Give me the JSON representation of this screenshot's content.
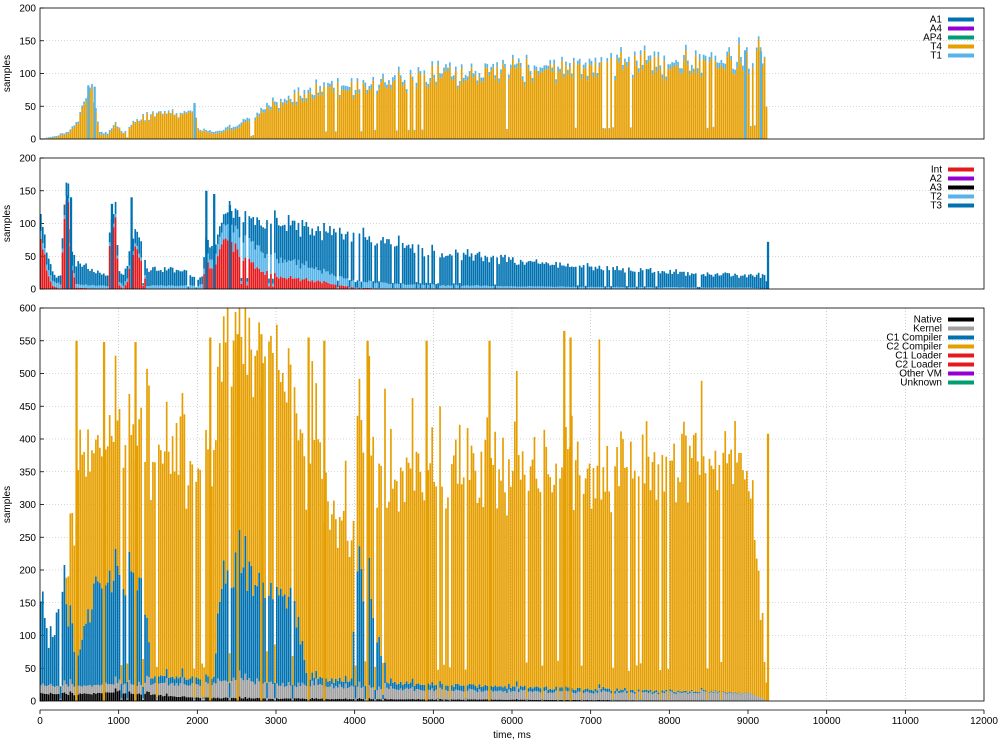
{
  "chart_data": [
    {
      "type": "bar",
      "stacked": true,
      "ylabel": "samples",
      "ylim": [
        0,
        200
      ],
      "yticks": [
        0,
        50,
        100,
        150,
        200
      ],
      "grid": true,
      "legend_position": "top-right",
      "series": [
        {
          "name": "A1",
          "color": "#0072b2"
        },
        {
          "name": "A4",
          "color": "#9400d3"
        },
        {
          "name": "AP4",
          "color": "#009e73"
        },
        {
          "name": "T4",
          "color": "#e69f00"
        },
        {
          "name": "T1",
          "color": "#56b4e9"
        }
      ],
      "profiles": {
        "T4": [
          [
            0,
            0
          ],
          [
            200,
            3
          ],
          [
            350,
            10
          ],
          [
            450,
            22
          ],
          [
            550,
            55
          ],
          [
            650,
            72
          ],
          [
            750,
            8
          ],
          [
            850,
            6
          ],
          [
            950,
            22
          ],
          [
            1050,
            8
          ],
          [
            1200,
            25
          ],
          [
            1400,
            35
          ],
          [
            1600,
            38
          ],
          [
            1800,
            35
          ],
          [
            1950,
            45
          ],
          [
            2000,
            15
          ],
          [
            2200,
            8
          ],
          [
            2500,
            18
          ],
          [
            2800,
            38
          ],
          [
            3000,
            50
          ],
          [
            3500,
            68
          ],
          [
            4000,
            80
          ],
          [
            4500,
            86
          ],
          [
            5000,
            92
          ],
          [
            5500,
            98
          ],
          [
            6000,
            102
          ],
          [
            6500,
            106
          ],
          [
            7000,
            108
          ],
          [
            7500,
            110
          ],
          [
            8000,
            112
          ],
          [
            8500,
            114
          ],
          [
            9000,
            118
          ],
          [
            9200,
            122
          ],
          [
            9250,
            0
          ]
        ],
        "T1": [
          [
            0,
            0
          ],
          [
            200,
            2
          ],
          [
            450,
            3
          ],
          [
            650,
            5
          ],
          [
            1000,
            2
          ],
          [
            2000,
            2
          ],
          [
            2400,
            4
          ],
          [
            3000,
            5
          ],
          [
            4000,
            6
          ],
          [
            6000,
            6
          ],
          [
            8000,
            7
          ],
          [
            9000,
            8
          ],
          [
            9250,
            0
          ]
        ]
      },
      "spikes": [
        [
          600,
          82
        ],
        [
          680,
          80
        ],
        [
          1950,
          55
        ],
        [
          8950,
          135
        ],
        [
          9150,
          134
        ]
      ]
    },
    {
      "type": "bar",
      "stacked": true,
      "ylabel": "samples",
      "ylim": [
        0,
        200
      ],
      "yticks": [
        0,
        50,
        100,
        150,
        200
      ],
      "grid": true,
      "legend_position": "top-right",
      "series": [
        {
          "name": "Int",
          "color": "#e41a1c"
        },
        {
          "name": "A2",
          "color": "#9400d3"
        },
        {
          "name": "A3",
          "color": "#000000"
        },
        {
          "name": "T2",
          "color": "#56b4e9"
        },
        {
          "name": "T3",
          "color": "#0072b2"
        }
      ],
      "profiles": {
        "Int": [
          [
            0,
            70
          ],
          [
            60,
            40
          ],
          [
            100,
            20
          ],
          [
            150,
            5
          ],
          [
            250,
            0
          ],
          [
            300,
            120
          ],
          [
            340,
            130
          ],
          [
            400,
            30
          ],
          [
            450,
            2
          ],
          [
            850,
            0
          ],
          [
            880,
            85
          ],
          [
            950,
            90
          ],
          [
            1000,
            5
          ],
          [
            1050,
            0
          ],
          [
            1100,
            10
          ],
          [
            1200,
            70
          ],
          [
            1300,
            30
          ],
          [
            1350,
            0
          ],
          [
            2050,
            0
          ],
          [
            2100,
            40
          ],
          [
            2200,
            30
          ],
          [
            2300,
            70
          ],
          [
            2400,
            80
          ],
          [
            2500,
            60
          ],
          [
            2600,
            45
          ],
          [
            2800,
            30
          ],
          [
            3000,
            20
          ],
          [
            3500,
            12
          ],
          [
            4000,
            2
          ],
          [
            4500,
            0
          ],
          [
            9250,
            0
          ]
        ],
        "T2": [
          [
            0,
            10
          ],
          [
            500,
            5
          ],
          [
            1000,
            5
          ],
          [
            2000,
            5
          ],
          [
            2300,
            20
          ],
          [
            2600,
            35
          ],
          [
            3000,
            28
          ],
          [
            3500,
            18
          ],
          [
            4000,
            10
          ],
          [
            5000,
            6
          ],
          [
            6000,
            4
          ],
          [
            7000,
            3
          ],
          [
            9000,
            2
          ],
          [
            9250,
            0
          ]
        ],
        "T3": [
          [
            0,
            25
          ],
          [
            200,
            10
          ],
          [
            500,
            30
          ],
          [
            700,
            20
          ],
          [
            1000,
            15
          ],
          [
            1400,
            25
          ],
          [
            1800,
            25
          ],
          [
            2000,
            10
          ],
          [
            2100,
            20
          ],
          [
            2300,
            15
          ],
          [
            2600,
            35
          ],
          [
            3000,
            55
          ],
          [
            3500,
            60
          ],
          [
            4000,
            68
          ],
          [
            4500,
            62
          ],
          [
            5000,
            52
          ],
          [
            5500,
            46
          ],
          [
            6000,
            40
          ],
          [
            6500,
            34
          ],
          [
            7000,
            30
          ],
          [
            7500,
            26
          ],
          [
            8000,
            23
          ],
          [
            8500,
            20
          ],
          [
            9000,
            18
          ],
          [
            9200,
            20
          ],
          [
            9250,
            0
          ]
        ]
      },
      "spikes": [
        [
          330,
          143
        ],
        [
          380,
          140
        ],
        [
          900,
          130
        ],
        [
          1150,
          140
        ],
        [
          2100,
          150
        ],
        [
          2200,
          145
        ],
        [
          2400,
          128
        ],
        [
          9240,
          72
        ]
      ]
    },
    {
      "type": "bar",
      "stacked": true,
      "xlabel": "time, ms",
      "ylabel": "samples",
      "ylim": [
        0,
        600
      ],
      "yticks": [
        0,
        50,
        100,
        150,
        200,
        250,
        300,
        350,
        400,
        450,
        500,
        550,
        600
      ],
      "xlim": [
        0,
        12000
      ],
      "xticks": [
        0,
        1000,
        2000,
        3000,
        4000,
        5000,
        6000,
        7000,
        8000,
        9000,
        10000,
        11000,
        12000
      ],
      "grid": true,
      "legend_position": "top-right",
      "series": [
        {
          "name": "Native",
          "color": "#000000"
        },
        {
          "name": "Kernel",
          "color": "#a0a0a0"
        },
        {
          "name": "C1 Compiler",
          "color": "#0072b2"
        },
        {
          "name": "C2 Compiler",
          "color": "#e69f00"
        },
        {
          "name": "C1 Loader",
          "color": "#e41a1c"
        },
        {
          "name": "C2 Loader",
          "color": "#e41a1c"
        },
        {
          "name": "Other VM",
          "color": "#9400d3"
        },
        {
          "name": "Unknown",
          "color": "#009e73"
        }
      ],
      "profiles": {
        "Native": [
          [
            0,
            12
          ],
          [
            500,
            10
          ],
          [
            1000,
            14
          ],
          [
            1500,
            8
          ],
          [
            2000,
            5
          ],
          [
            3000,
            4
          ],
          [
            4000,
            3
          ],
          [
            6000,
            2
          ],
          [
            9250,
            0
          ]
        ],
        "Kernel": [
          [
            0,
            12
          ],
          [
            1000,
            14
          ],
          [
            2000,
            20
          ],
          [
            2500,
            28
          ],
          [
            3000,
            22
          ],
          [
            4000,
            18
          ],
          [
            5000,
            14
          ],
          [
            6000,
            13
          ],
          [
            7000,
            12
          ],
          [
            9000,
            12
          ],
          [
            9250,
            0
          ]
        ],
        "C1 Compiler": [
          [
            0,
            140
          ],
          [
            100,
            60
          ],
          [
            250,
            140
          ],
          [
            350,
            110
          ],
          [
            450,
            40
          ],
          [
            700,
            150
          ],
          [
            900,
            170
          ],
          [
            1100,
            160
          ],
          [
            1300,
            140
          ],
          [
            1400,
            10
          ],
          [
            2200,
            10
          ],
          [
            2300,
            150
          ],
          [
            2500,
            160
          ],
          [
            2900,
            140
          ],
          [
            3200,
            130
          ],
          [
            3400,
            10
          ],
          [
            3950,
            10
          ],
          [
            4000,
            150
          ],
          [
            4200,
            140
          ],
          [
            4400,
            10
          ],
          [
            9250,
            0
          ]
        ],
        "C2 Compiler": [
          [
            0,
            0
          ],
          [
            300,
            0
          ],
          [
            400,
            150
          ],
          [
            500,
            300
          ],
          [
            700,
            200
          ],
          [
            900,
            250
          ],
          [
            1100,
            200
          ],
          [
            1300,
            250
          ],
          [
            1500,
            340
          ],
          [
            2000,
            310
          ],
          [
            2200,
            350
          ],
          [
            2500,
            350
          ],
          [
            3000,
            360
          ],
          [
            3300,
            300
          ],
          [
            3500,
            320
          ],
          [
            4000,
            200
          ],
          [
            4500,
            320
          ],
          [
            5000,
            330
          ],
          [
            6000,
            340
          ],
          [
            7000,
            340
          ],
          [
            8000,
            340
          ],
          [
            9000,
            340
          ],
          [
            9250,
            0
          ]
        ]
      },
      "spikes": [
        [
          450,
          550
        ],
        [
          800,
          548
        ],
        [
          1200,
          548
        ],
        [
          2150,
          555
        ],
        [
          2500,
          560
        ],
        [
          2800,
          560
        ],
        [
          3400,
          555
        ],
        [
          3600,
          550
        ],
        [
          4150,
          550
        ],
        [
          4900,
          550
        ],
        [
          5700,
          550
        ],
        [
          6650,
          565
        ],
        [
          6730,
          555
        ],
        [
          9240,
          408
        ]
      ]
    }
  ]
}
